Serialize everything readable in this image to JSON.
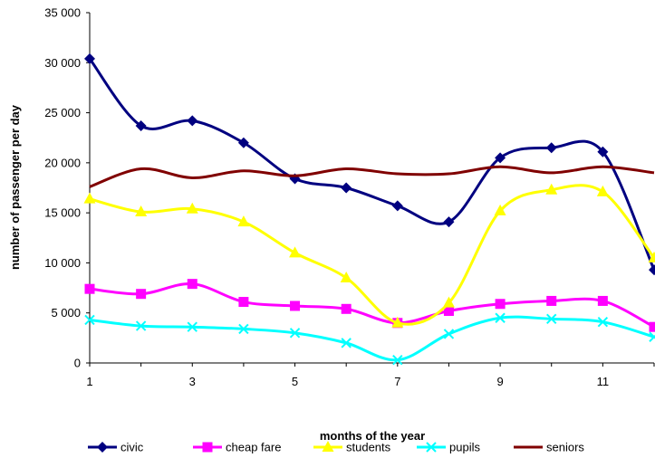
{
  "chart_data": {
    "type": "line",
    "xlabel": "months of the year",
    "ylabel": "number of passenger per day",
    "x": [
      1,
      2,
      3,
      4,
      5,
      6,
      7,
      8,
      9,
      10,
      11,
      12
    ],
    "xticks": [
      1,
      3,
      5,
      7,
      9,
      11
    ],
    "xlim": [
      1,
      12
    ],
    "ylim": [
      0,
      35000
    ],
    "yticks": [
      0,
      5000,
      10000,
      15000,
      20000,
      25000,
      30000,
      35000
    ],
    "ytick_labels": [
      "0",
      "5 000",
      "10 000",
      "15 000",
      "20 000",
      "25 000",
      "30 000",
      "35 000"
    ],
    "grid": false,
    "smooth": true,
    "legend_position": "bottom",
    "series": [
      {
        "name": "civic",
        "color": "#000080",
        "marker": "diamond",
        "values": [
          30400,
          23700,
          24200,
          22000,
          18400,
          17500,
          15700,
          14100,
          20500,
          21500,
          21100,
          9300
        ]
      },
      {
        "name": "cheap fare",
        "color": "#ff00ff",
        "marker": "square",
        "values": [
          7400,
          6900,
          7900,
          6100,
          5700,
          5400,
          4000,
          5200,
          5900,
          6200,
          6200,
          3600
        ]
      },
      {
        "name": "students",
        "color": "#ffff00",
        "marker": "triangle",
        "values": [
          16400,
          15100,
          15400,
          14100,
          11000,
          8500,
          4000,
          6000,
          15200,
          17300,
          17100,
          10500
        ]
      },
      {
        "name": "pupils",
        "color": "#00ffff",
        "marker": "x",
        "values": [
          4300,
          3700,
          3600,
          3400,
          3000,
          2000,
          300,
          2900,
          4500,
          4400,
          4100,
          2600
        ]
      },
      {
        "name": "seniors",
        "color": "#800000",
        "marker": "none",
        "values": [
          17600,
          19400,
          18500,
          19200,
          18700,
          19400,
          18900,
          18900,
          19600,
          19000,
          19600,
          19000
        ]
      }
    ]
  }
}
